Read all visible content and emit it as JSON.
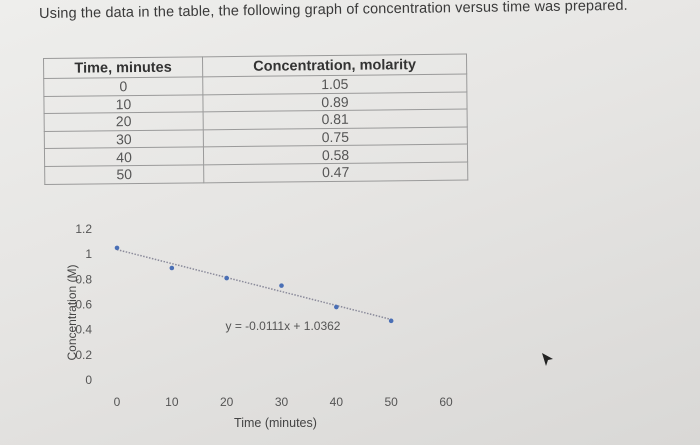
{
  "prompt": "Using the data in the table, the following graph of concentration versus time was prepared.",
  "table": {
    "headers": [
      "Time, minutes",
      "Concentration, molarity"
    ],
    "rows": [
      [
        "0",
        "1.05"
      ],
      [
        "10",
        "0.89"
      ],
      [
        "20",
        "0.81"
      ],
      [
        "30",
        "0.75"
      ],
      [
        "40",
        "0.58"
      ],
      [
        "50",
        "0.47"
      ]
    ]
  },
  "chart_data": {
    "type": "scatter",
    "x": [
      0,
      10,
      20,
      30,
      40,
      50
    ],
    "y": [
      1.05,
      0.89,
      0.81,
      0.75,
      0.58,
      0.47
    ],
    "xlabel": "Time (minutes)",
    "ylabel": "Concentration (M)",
    "xlim": [
      0,
      60
    ],
    "ylim": [
      0,
      1.2
    ],
    "xticks": [
      "0",
      "10",
      "20",
      "30",
      "40",
      "50",
      "60"
    ],
    "yticks": [
      "0",
      "0.2",
      "0.4",
      "0.6",
      "0.8",
      "1",
      "1.2"
    ],
    "trendline": {
      "slope": -0.0111,
      "intercept": 1.0362,
      "label": "y = -0.0111x + 1.0362"
    },
    "marker_color": "#4a6fb5",
    "trendline_color": "#8a8a9a",
    "grid": false
  }
}
